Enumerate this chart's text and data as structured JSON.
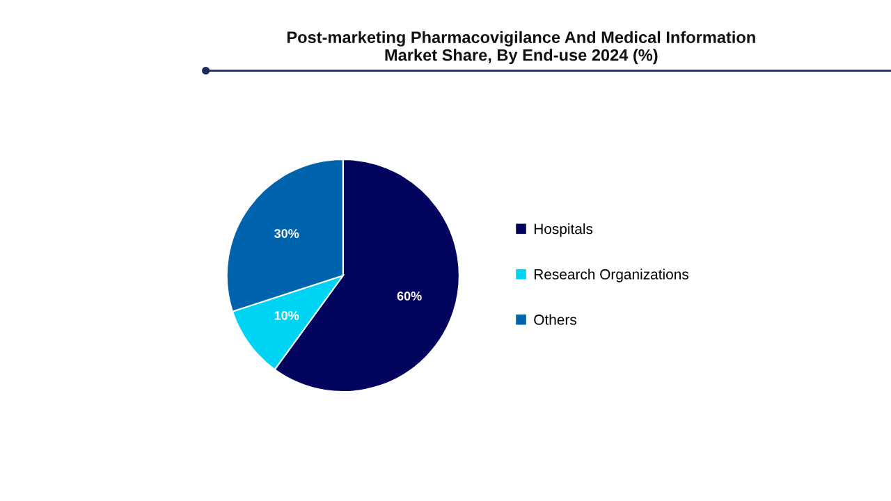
{
  "chart_data": {
    "type": "pie",
    "title": "Post-marketing Pharmacovigilance And Medical Information\nMarket Share, By End-use 2024 (%)",
    "categories": [
      "Hospitals",
      "Research Organizations",
      "Others"
    ],
    "values": [
      60,
      10,
      30
    ],
    "colors": [
      "#03045e",
      "#00d4f5",
      "#0063ad"
    ],
    "value_labels": [
      "60%",
      "10%",
      "30%"
    ],
    "legend": "right"
  }
}
